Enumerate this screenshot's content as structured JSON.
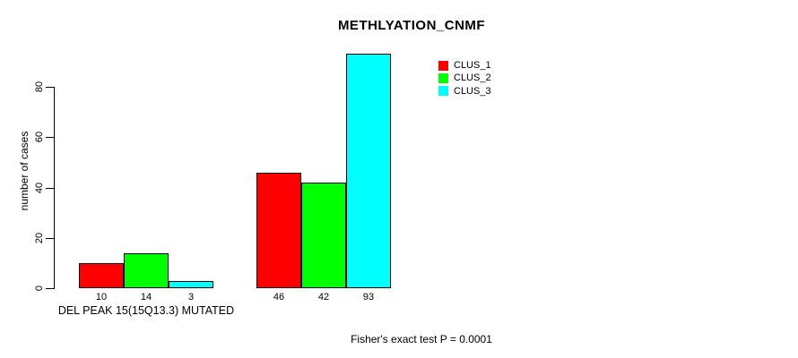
{
  "chart_data": {
    "type": "bar",
    "title": "METHLYATION_CNMF",
    "ylabel": "number of cases",
    "xlabel": "",
    "group_label": "DEL PEAK 15(15Q13.3) MUTATED",
    "footnote": "Fisher's exact test P = 0.0001",
    "categories": [
      "DEL PEAK 15(15Q13.3) MUTATED",
      ""
    ],
    "series": [
      {
        "name": "CLUS_1",
        "color": "#ff0000",
        "values": [
          10,
          46
        ]
      },
      {
        "name": "CLUS_2",
        "color": "#00ff00",
        "values": [
          14,
          42
        ]
      },
      {
        "name": "CLUS_3",
        "color": "#00ffff",
        "values": [
          3,
          93
        ]
      }
    ],
    "bar_value_labels": [
      [
        10,
        14,
        3
      ],
      [
        46,
        42,
        93
      ]
    ],
    "yticks": [
      0,
      20,
      40,
      60,
      80
    ],
    "ylim": [
      0,
      93
    ],
    "grid": false,
    "legend_position": "top-right",
    "bar_border_color": "#000000",
    "background": "#ffffff"
  }
}
